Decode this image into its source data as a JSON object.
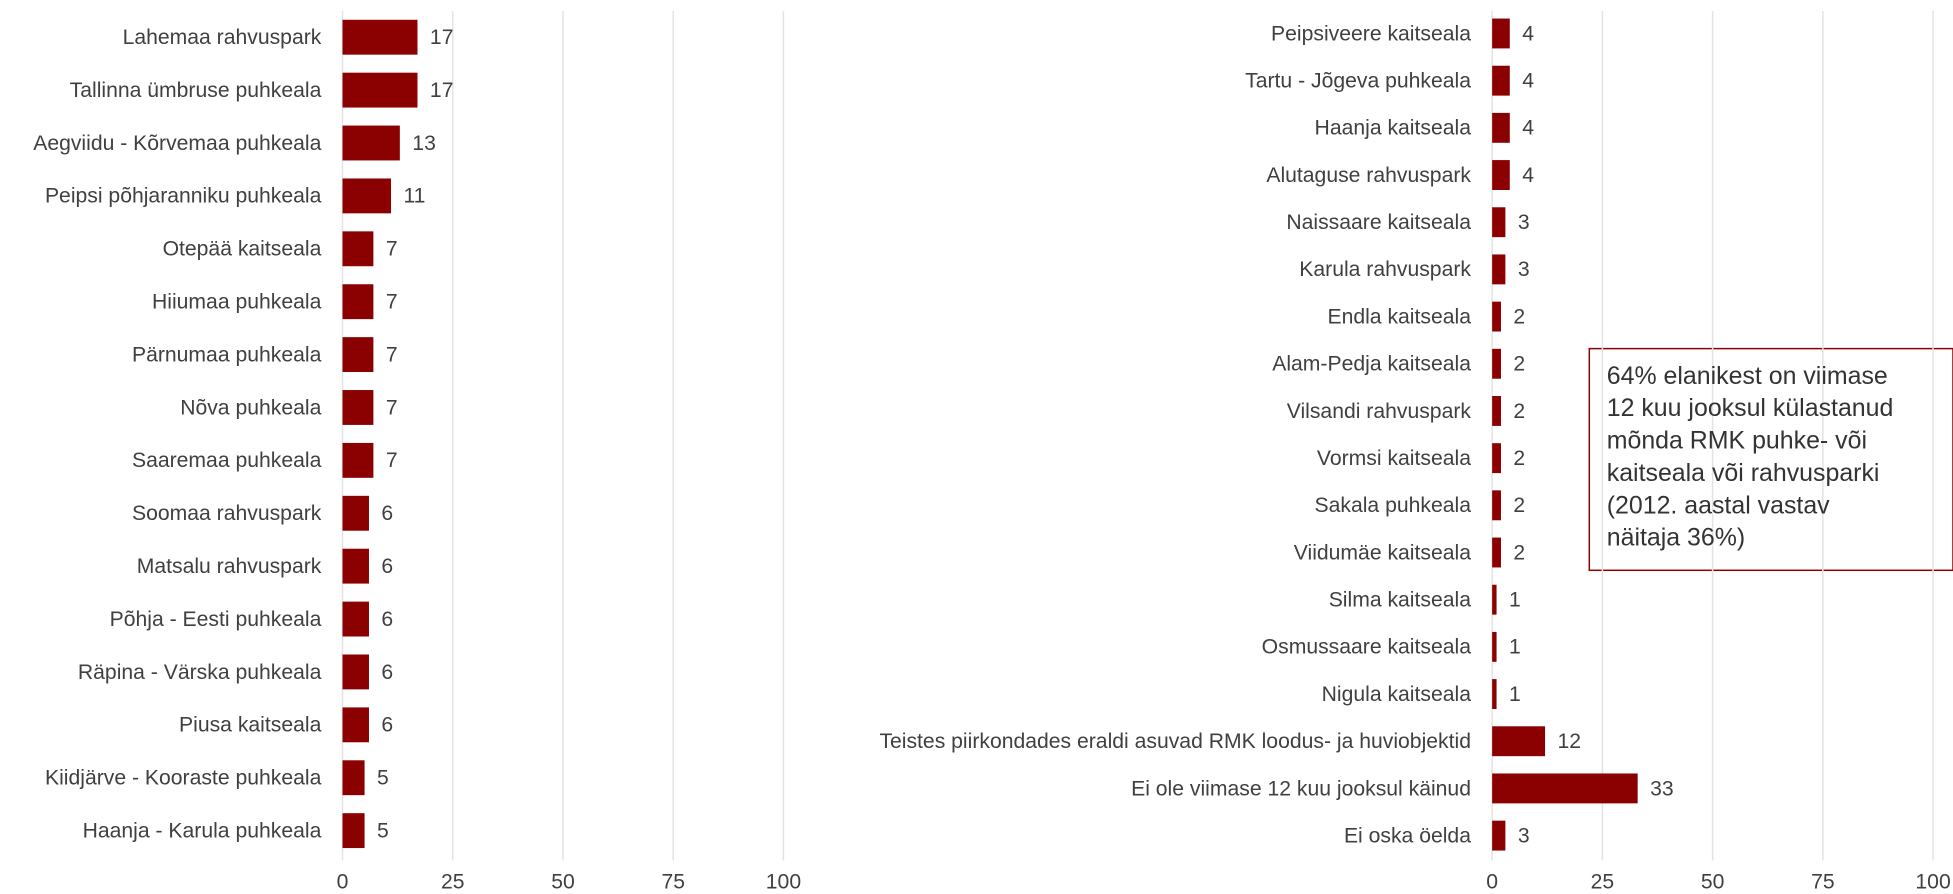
{
  "chart_data": [
    {
      "type": "bar",
      "orientation": "horizontal",
      "color": "#8b0000",
      "categories": [
        "Lahemaa rahvuspark",
        "Tallinna ümbruse puhkeala",
        "Aegviidu - Kõrvemaa puhkeala",
        "Peipsi põhjaranniku puhkeala",
        "Otepää  kaitseala",
        "Hiiumaa puhkeala",
        "Pärnumaa puhkeala",
        "Nõva puhkeala",
        "Saaremaa puhkeala",
        "Soomaa rahvuspark",
        "Matsalu rahvuspark",
        "Põhja - Eesti puhkeala",
        "Räpina - Värska puhkeala",
        "Piusa kaitseala",
        "Kiidjärve - Kooraste puhkeala",
        "Haanja - Karula puhkeala"
      ],
      "values": [
        17,
        17,
        13,
        11,
        7,
        7,
        7,
        7,
        7,
        6,
        6,
        6,
        6,
        6,
        5,
        5
      ],
      "xlim": [
        0,
        100
      ],
      "xticks": [
        0,
        25,
        50,
        75,
        100
      ],
      "grid": true
    },
    {
      "type": "bar",
      "orientation": "horizontal",
      "color": "#8b0000",
      "categories": [
        "Peipsiveere kaitseala",
        "Tartu - Jõgeva puhkeala",
        "Haanja kaitseala",
        "Alutaguse rahvuspark",
        "Naissaare  kaitseala",
        "Karula rahvuspark",
        "Endla kaitseala",
        "Alam-Pedja kaitseala",
        "Vilsandi rahvuspark",
        "Vormsi kaitseala",
        "Sakala puhkeala",
        "Viidumäe kaitseala",
        "Silma kaitseala",
        "Osmussaare kaitseala",
        "Nigula kaitseala",
        "Teistes piirkondades eraldi asuvad RMK loodus- ja huviobjektid",
        "Ei ole viimase 12 kuu jooksul käinud",
        "Ei oska öelda"
      ],
      "values": [
        4,
        4,
        4,
        4,
        3,
        3,
        2,
        2,
        2,
        2,
        2,
        2,
        1,
        1,
        1,
        12,
        33,
        3
      ],
      "xlim": [
        0,
        100
      ],
      "xticks": [
        0,
        25,
        50,
        75,
        100
      ],
      "grid": true,
      "annotation": [
        "64% elanikest on viimase",
        "12 kuu jooksul külastanud",
        "mõnda RMK puhke- või",
        "kaitseala või rahvusparki",
        "(2012. aastal vastav",
        "näitaja 36%)"
      ]
    }
  ]
}
